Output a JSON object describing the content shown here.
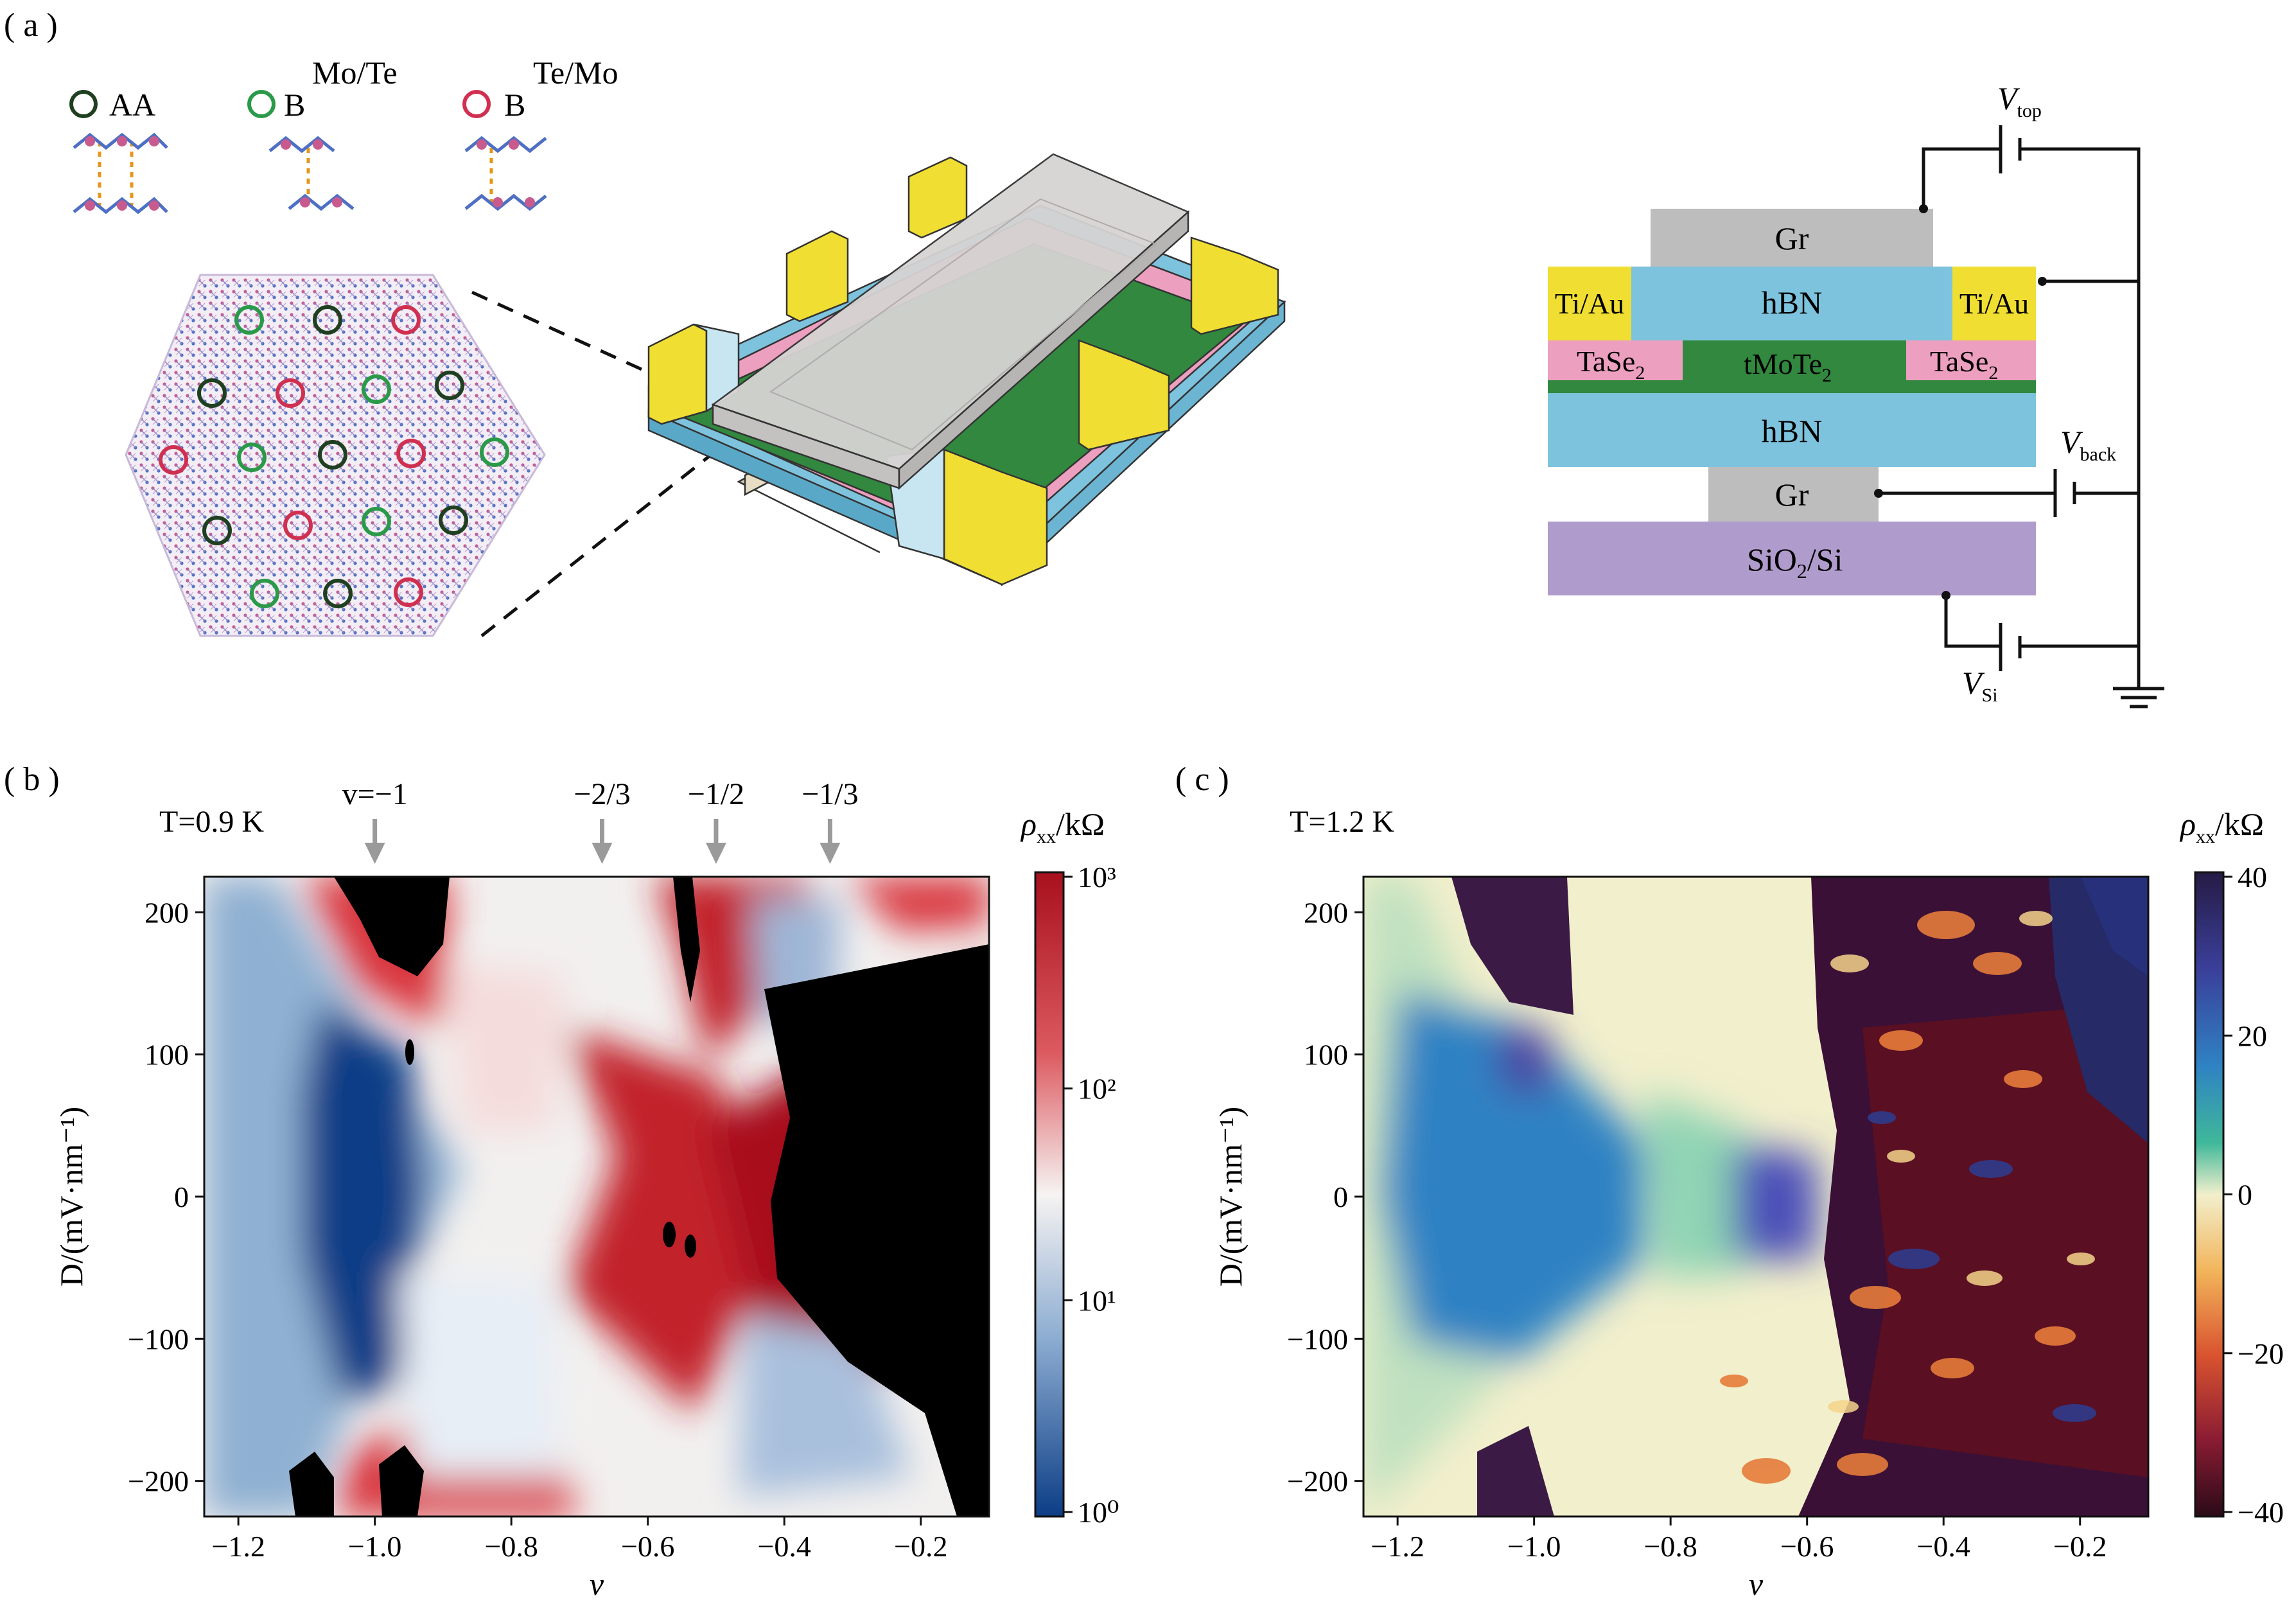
{
  "panel_a": {
    "label": "( a )",
    "stacking": [
      {
        "name": "AA",
        "sup": "",
        "color": "#1f4020"
      },
      {
        "name": "B",
        "sup": "Mo/Te",
        "color": "#2a9a48"
      },
      {
        "name": "B",
        "sup": "Te/Mo",
        "color": "#d03050"
      }
    ],
    "layers": {
      "gr_top": "Gr",
      "hbn_top": "hBN",
      "tiau_left": "Ti/Au",
      "tiau_right": "Ti/Au",
      "tase2_left": "TaSe",
      "tase2_left_sub": "2",
      "tmote2": "tMoTe",
      "tmote2_sub": "2",
      "tase2_right": "TaSe",
      "tase2_right_sub": "2",
      "hbn_bottom": "hBN",
      "gr_bottom": "Gr",
      "sio2": "SiO",
      "sio2_sub": "2",
      "sio2_rest": "/Si"
    },
    "voltages": {
      "top": "V",
      "top_sub": "top",
      "back": "V",
      "back_sub": "back",
      "si": "V",
      "si_sub": "Si"
    },
    "colors": {
      "gr": "#bdbdbd",
      "hbn": "#7ec3de",
      "tiau": "#f0df32",
      "tase2": "#ec9fbf",
      "tmote2": "#31883e",
      "sio2": "#b09ccc"
    }
  },
  "panel_b": {
    "label": "( b )",
    "temp": "T=0.9 K",
    "arrows": [
      "v=−1",
      "−2/3",
      "−1/2",
      "−1/3"
    ],
    "colorbar_title": "ρxx/kΩ",
    "colorbar_ticks": [
      "10³",
      "10²",
      "10¹",
      "10⁰"
    ]
  },
  "panel_c": {
    "label": "( c )",
    "temp": "T=1.2 K",
    "colorbar_title": "ρxx/kΩ",
    "colorbar_ticks": [
      "40",
      "20",
      "0",
      "−20",
      "−40"
    ]
  },
  "chart_data": [
    {
      "type": "heatmap",
      "panel": "b",
      "title": "T=0.9 K",
      "xlabel": "v",
      "ylabel": "D/(mV·nm⁻¹)",
      "xlim": [
        -1.25,
        -0.1
      ],
      "ylim": [
        -225,
        225
      ],
      "x_ticks": [
        -1.2,
        -1.0,
        -0.8,
        -0.6,
        -0.4,
        -0.2
      ],
      "y_ticks": [
        200,
        100,
        0,
        -100,
        -200
      ],
      "colorbar": {
        "label": "ρxx/kΩ",
        "scale": "log",
        "range": [
          1,
          1000
        ]
      },
      "annotations": [
        {
          "text": "v=−1",
          "x": -1.0
        },
        {
          "text": "−2/3",
          "x": -0.667
        },
        {
          "text": "−1/2",
          "x": -0.5
        },
        {
          "text": "−1/3",
          "x": -0.333
        }
      ]
    },
    {
      "type": "heatmap",
      "panel": "c",
      "title": "T=1.2 K",
      "xlabel": "v",
      "ylabel": "D/(mV·nm⁻¹)",
      "xlim": [
        -1.25,
        -0.1
      ],
      "ylim": [
        -225,
        225
      ],
      "x_ticks": [
        -1.2,
        -1.0,
        -0.8,
        -0.6,
        -0.4,
        -0.2
      ],
      "y_ticks": [
        200,
        100,
        0,
        -100,
        -200
      ],
      "colorbar": {
        "label": "ρxx/kΩ",
        "scale": "linear",
        "range": [
          -40,
          40
        ]
      }
    }
  ]
}
